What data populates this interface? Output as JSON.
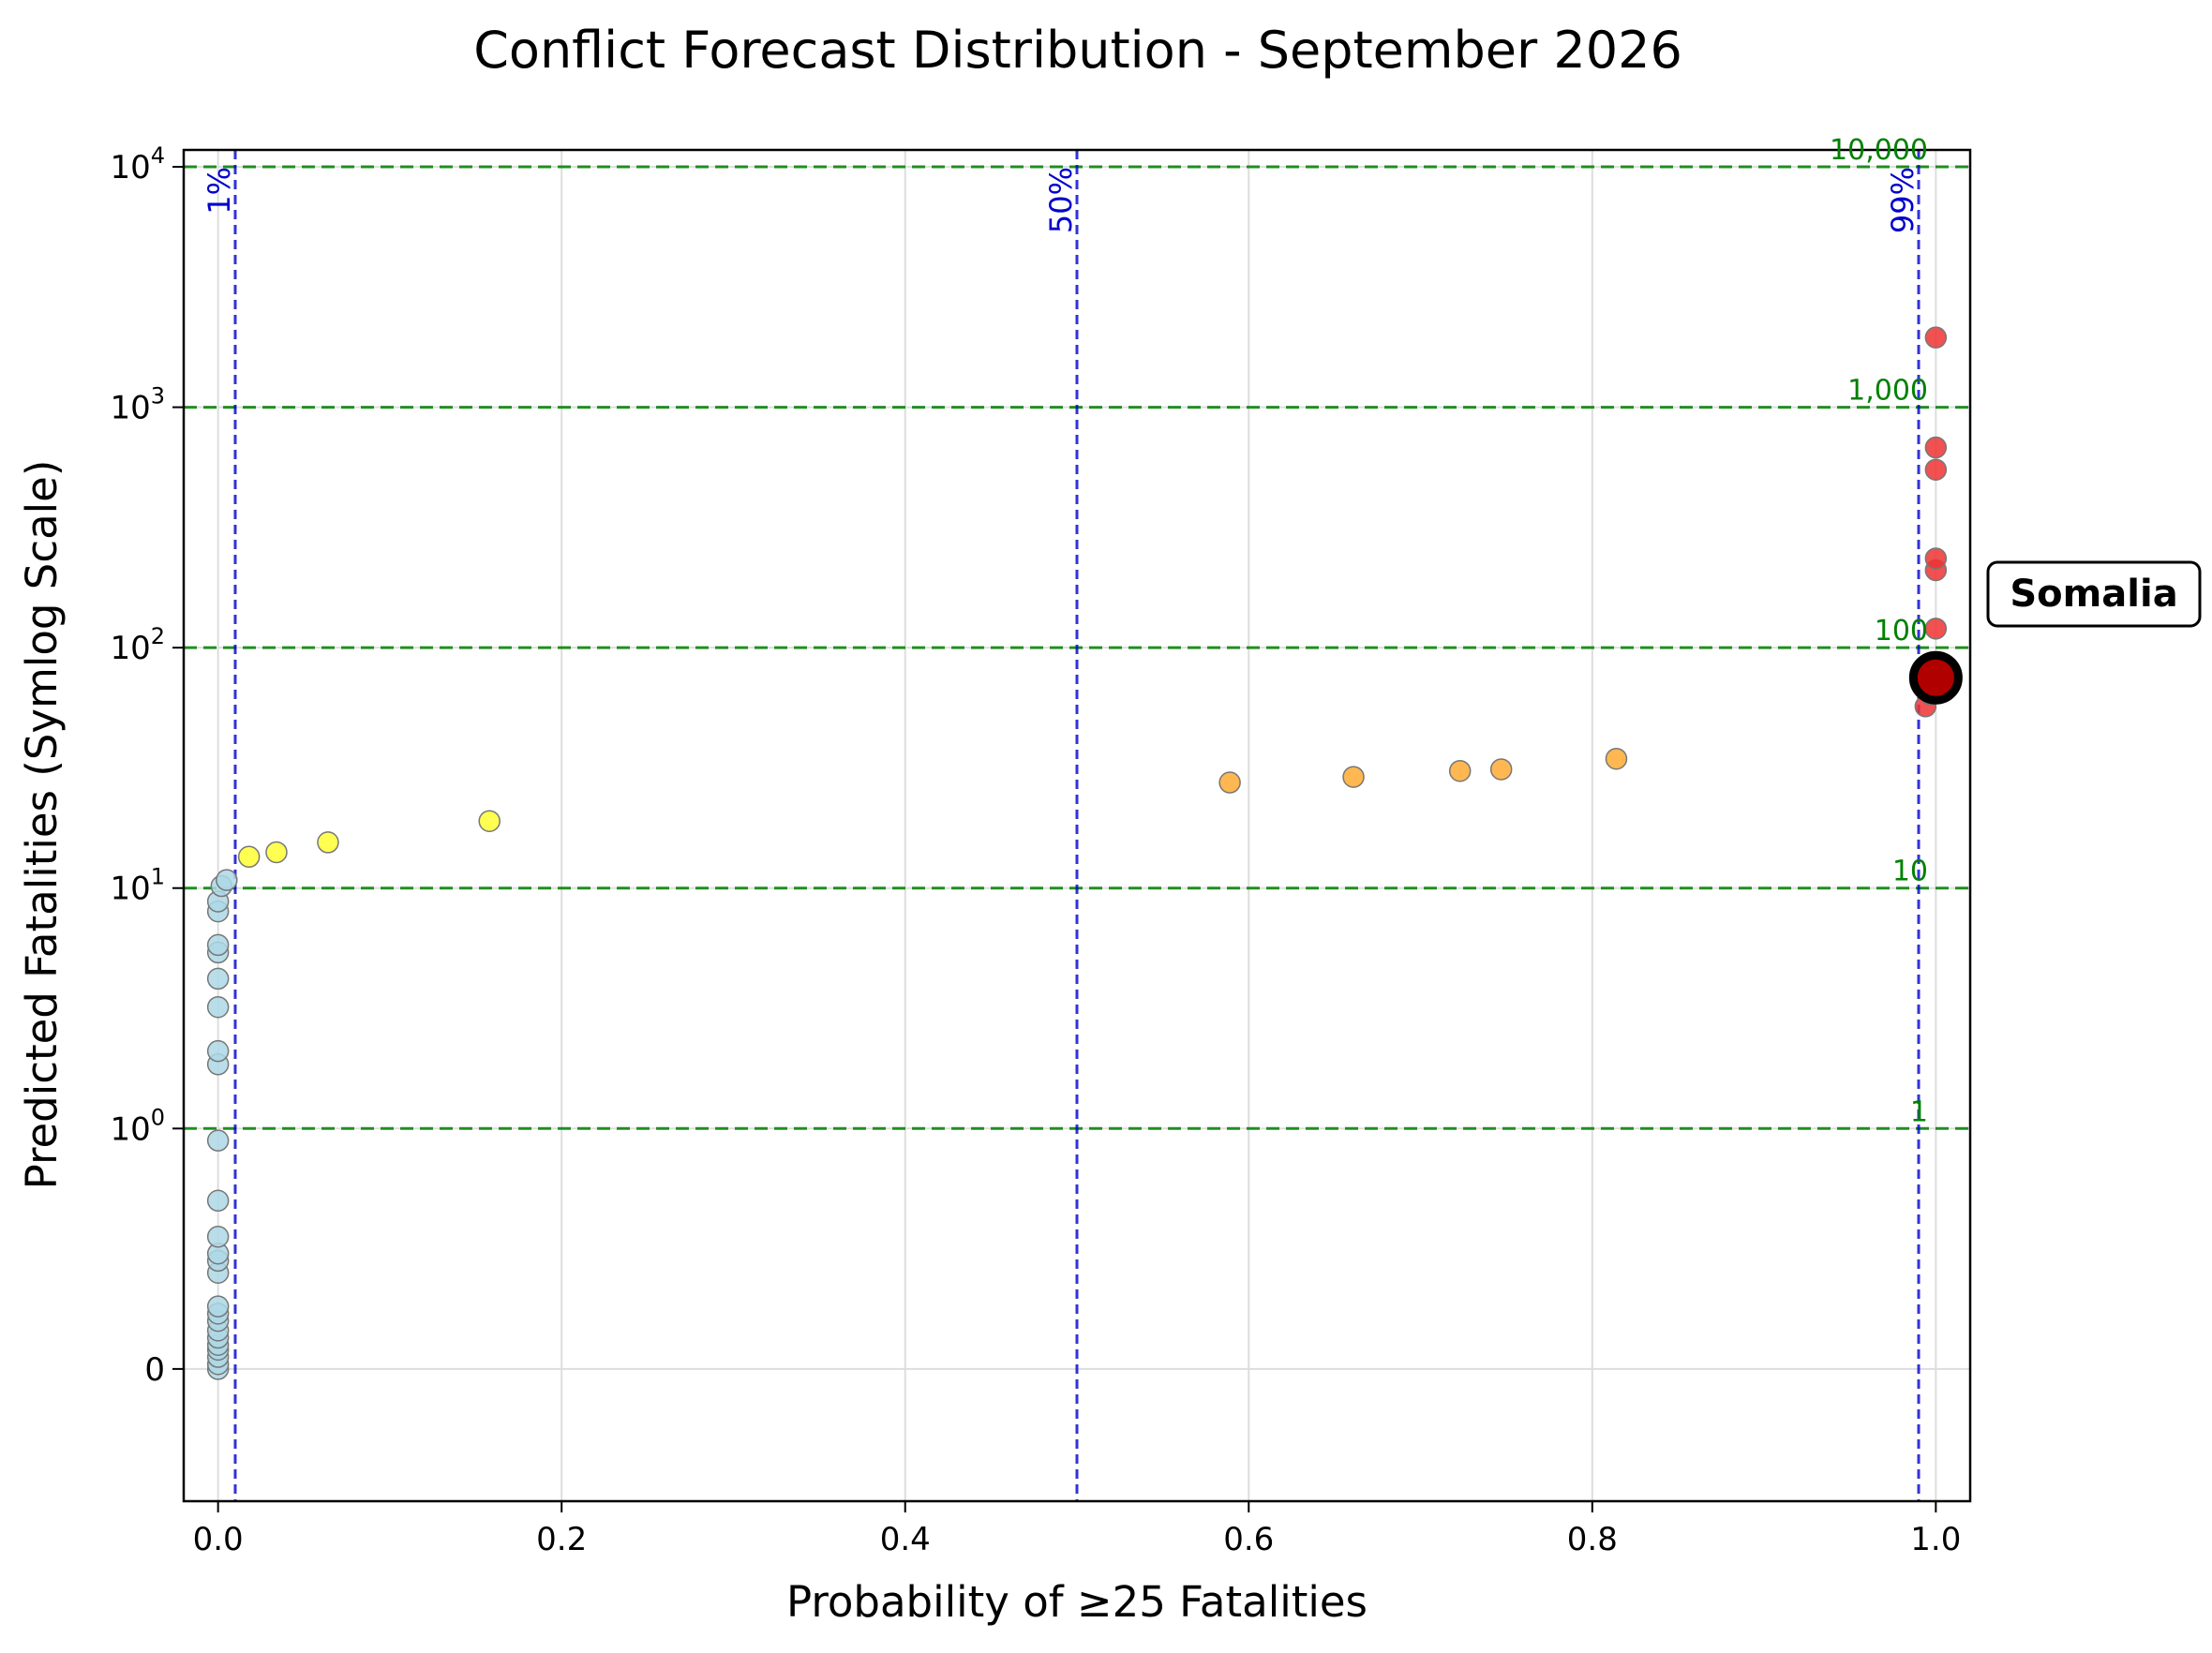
{
  "colors": {
    "low": "#add8e6",
    "medium": "#ffff33",
    "high": "#ffaa33",
    "very_high": "#ee3333",
    "highlight": "#b00000",
    "ref_h": "#008000",
    "ref_v": "#0000cc",
    "grid": "#dddddd"
  },
  "chart_data": {
    "type": "scatter",
    "title": "Conflict Forecast Distribution - September 2026",
    "xlabel": "Probability of ≥25 Fatalities",
    "ylabel": "Predicted Fatalities (Symlog Scale)",
    "xscale": "linear",
    "yscale": "symlog",
    "xlim": [
      -0.02,
      1.02
    ],
    "ylim": [
      -0.55,
      10000
    ],
    "grid": true,
    "x_ticks": [
      "0.0",
      "0.2",
      "0.4",
      "0.6",
      "0.8",
      "1.0"
    ],
    "y_ticks": [
      {
        "base": "0",
        "exp": "",
        "value": 0
      },
      {
        "base": "10",
        "exp": "0",
        "value": 1
      },
      {
        "base": "10",
        "exp": "1",
        "value": 10
      },
      {
        "base": "10",
        "exp": "2",
        "value": 100
      },
      {
        "base": "10",
        "exp": "3",
        "value": 1000
      },
      {
        "base": "10",
        "exp": "4",
        "value": 10000
      }
    ],
    "horizontal_reference_lines": [
      {
        "value": 1,
        "label": "1"
      },
      {
        "value": 10,
        "label": "10"
      },
      {
        "value": 100,
        "label": "100"
      },
      {
        "value": 1000,
        "label": "1,000"
      },
      {
        "value": 10000,
        "label": "10,000"
      }
    ],
    "vertical_reference_lines": [
      {
        "value": 0.01,
        "label": "1%"
      },
      {
        "value": 0.5,
        "label": "50%"
      },
      {
        "value": 0.99,
        "label": "99%"
      }
    ],
    "series": [
      {
        "color_key": "low",
        "points": [
          [
            0.0,
            0.0
          ],
          [
            0.0,
            0.02
          ],
          [
            0.0,
            0.05
          ],
          [
            0.0,
            0.08
          ],
          [
            0.0,
            0.1
          ],
          [
            0.0,
            0.13
          ],
          [
            0.0,
            0.16
          ],
          [
            0.0,
            0.2
          ],
          [
            0.0,
            0.23
          ],
          [
            0.0,
            0.26
          ],
          [
            0.0,
            0.4
          ],
          [
            0.0,
            0.45
          ],
          [
            0.0,
            0.48
          ],
          [
            0.0,
            0.55
          ],
          [
            0.0,
            0.7
          ],
          [
            0.0,
            0.95
          ],
          [
            0.0,
            1.85
          ],
          [
            0.0,
            2.1
          ],
          [
            0.0,
            3.2
          ],
          [
            0.0,
            4.2
          ],
          [
            0.0,
            5.4
          ],
          [
            0.0,
            5.8
          ],
          [
            0.0,
            8.0
          ],
          [
            0.0,
            8.8
          ],
          [
            0.002,
            10.2
          ],
          [
            0.005,
            10.8
          ]
        ]
      },
      {
        "color_key": "medium",
        "points": [
          [
            0.018,
            13.5
          ],
          [
            0.034,
            14.1
          ],
          [
            0.064,
            15.5
          ],
          [
            0.158,
            19.0
          ]
        ]
      },
      {
        "color_key": "high",
        "points": [
          [
            0.589,
            27.5
          ],
          [
            0.661,
            29.0
          ],
          [
            0.723,
            30.7
          ],
          [
            0.747,
            31.2
          ],
          [
            0.814,
            34.5
          ]
        ]
      },
      {
        "color_key": "very_high",
        "points": [
          [
            0.994,
            57
          ],
          [
            0.997,
            64
          ],
          [
            1.0,
            120
          ],
          [
            1.0,
            210
          ],
          [
            1.0,
            235
          ],
          [
            1.0,
            550
          ],
          [
            1.0,
            680
          ],
          [
            1.0,
            1950
          ]
        ]
      }
    ],
    "highlight": {
      "label": "Somalia",
      "x": 1.0,
      "y": 75
    }
  }
}
